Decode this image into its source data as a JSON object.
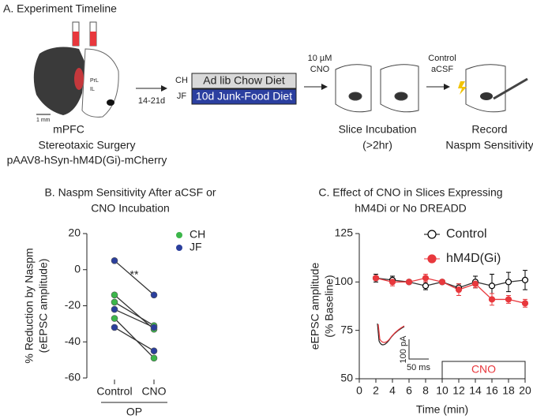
{
  "timeline": {
    "title": "A.  Experiment Timeline",
    "scale": "1 mm",
    "region": "mPFC",
    "region_labels": [
      "PrL",
      "IL"
    ],
    "surgery": [
      "Stereotaxic Surgery",
      "pAAV8-hSyn-hM4D(Gi)-mCherry"
    ],
    "delay": "14-21d",
    "diets": [
      {
        "group": "CH",
        "label": "Ad lib Chow Diet"
      },
      {
        "group": "JF",
        "label": "10d Junk-Food Diet"
      }
    ],
    "treatments": [
      [
        "10 µM",
        "CNO"
      ],
      [
        "Control",
        "aCSF"
      ]
    ],
    "steps": [
      [
        "Slice Incubation",
        "(>2hr)"
      ],
      [
        "Record",
        "Naspm Sensitivity"
      ]
    ]
  },
  "chart_data": [
    {
      "type": "paired_dot",
      "title": [
        "B.  Naspm Sensitivity After aCSF or",
        "CNO Incubation"
      ],
      "y_label": [
        "% Reduction by Naspm",
        "(eEPSC amplitude)"
      ],
      "categories": [
        "Control",
        "CNO"
      ],
      "group_label": "OP",
      "annotation": "**",
      "ylim": [
        -60,
        20
      ],
      "yticks": [
        -60,
        -40,
        -20,
        0,
        20
      ],
      "legend": "upper right",
      "series": [
        {
          "name": "CH",
          "color": "#3cb64a",
          "values": [
            [
              -14,
              -33
            ],
            [
              -18,
              -31
            ],
            [
              -27,
              -49
            ]
          ]
        },
        {
          "name": "JF",
          "color": "#2b3f9c",
          "values": [
            [
              5,
              -14
            ],
            [
              -22,
              -32
            ],
            [
              -32,
              -45
            ]
          ]
        }
      ]
    },
    {
      "type": "line",
      "title": [
        "C.  Effect of CNO in Slices Expressing",
        "hM4Di or No DREADD"
      ],
      "x_label": "Time (min)",
      "y_label": [
        "eEPSC amplitude",
        "(% Baseline)"
      ],
      "x": [
        2,
        4,
        6,
        8,
        10,
        12,
        14,
        16,
        18,
        20
      ],
      "xlim": [
        0,
        20
      ],
      "xticks": [
        0,
        2,
        4,
        6,
        8,
        10,
        12,
        14,
        16,
        18,
        20
      ],
      "ylim": [
        50,
        125
      ],
      "yticks": [
        50,
        75,
        100,
        125
      ],
      "legend": "upper right",
      "series": [
        {
          "name": "Control",
          "color": "#000000",
          "marker": "open",
          "values": [
            102,
            101,
            100,
            98,
            100,
            97,
            100,
            98,
            100,
            101
          ],
          "errors": [
            2,
            2,
            1,
            2,
            1,
            2,
            3,
            6,
            5,
            5
          ]
        },
        {
          "name": "hM4D(Gi)",
          "color": "#e8383d",
          "marker": "filled",
          "values": [
            102,
            100,
            100,
            102,
            100,
            96,
            99,
            91,
            91,
            89
          ],
          "errors": [
            1,
            2,
            1,
            2,
            1,
            3,
            2,
            3,
            2,
            2
          ]
        }
      ],
      "annotations": [
        {
          "text": "CNO",
          "x": [
            10,
            20
          ]
        }
      ],
      "inset_labels": [
        "100 pA",
        "50 ms"
      ]
    }
  ]
}
